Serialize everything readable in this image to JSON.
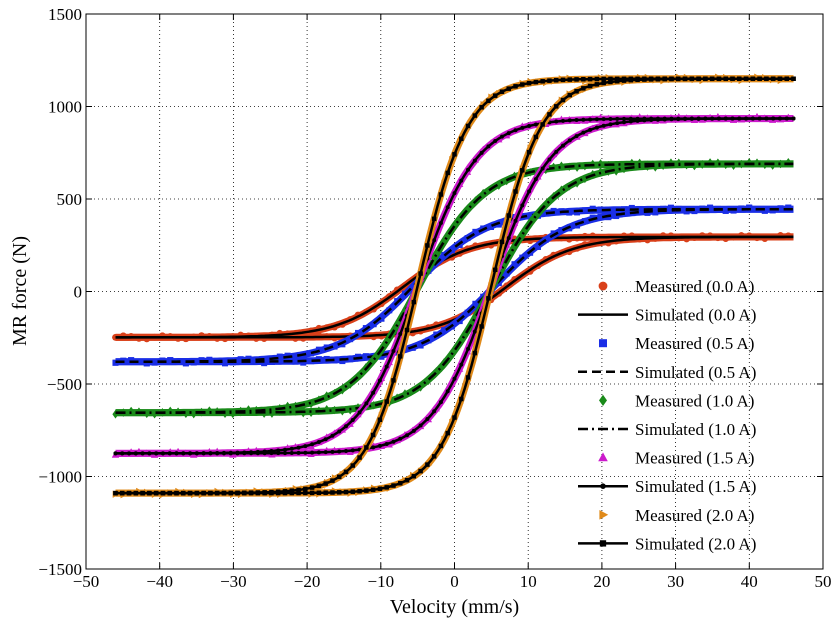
{
  "chart_data": {
    "type": "scatter",
    "title": "",
    "xlabel": "Velocity (mm/s)",
    "ylabel": "MR force (N)",
    "xlim": [
      -50,
      50
    ],
    "ylim": [
      -1500,
      1500
    ],
    "xticks": [
      -50,
      -40,
      -30,
      -20,
      -10,
      0,
      10,
      20,
      30,
      40,
      50
    ],
    "yticks": [
      -1500,
      -1000,
      -500,
      0,
      500,
      1000,
      1500
    ],
    "xtick_labels": [
      "−50",
      "−40",
      "−30",
      "−20",
      "−10",
      "0",
      "10",
      "20",
      "30",
      "40",
      "50"
    ],
    "ytick_labels": [
      "−1500",
      "−1000",
      "−500",
      "0",
      "500",
      "1000",
      "1500"
    ],
    "grid": true,
    "legend_position": "bottom-right",
    "series": [
      {
        "label": "Measured (0.0 A)",
        "kind": "measured",
        "marker": "circle",
        "color": "#d9401a",
        "params": {
          "fmax": 295,
          "fmin": 248,
          "v0": 7,
          "k": 0.11
        }
      },
      {
        "label": "Simulated (0.0 A)",
        "kind": "simulated",
        "line": "solid",
        "marker": "none",
        "color": "#000000",
        "params": {
          "fmax": 295,
          "fmin": 248,
          "v0": 7,
          "k": 0.11
        }
      },
      {
        "label": "Measured (0.5 A)",
        "kind": "measured",
        "marker": "square",
        "color": "#1a2ee6",
        "params": {
          "fmax": 445,
          "fmin": 380,
          "v0": 5.5,
          "k": 0.1
        }
      },
      {
        "label": "Simulated (0.5 A)",
        "kind": "simulated",
        "line": "dashed",
        "marker": "none",
        "color": "#000000",
        "params": {
          "fmax": 445,
          "fmin": 380,
          "v0": 5.5,
          "k": 0.1
        }
      },
      {
        "label": "Measured (1.0 A)",
        "kind": "measured",
        "marker": "diamond",
        "color": "#1a8a1a",
        "params": {
          "fmax": 690,
          "fmin": 655,
          "v0": 5,
          "k": 0.11
        }
      },
      {
        "label": "Simulated (1.0 A)",
        "kind": "simulated",
        "line": "dashdot",
        "marker": "none",
        "color": "#000000",
        "params": {
          "fmax": 690,
          "fmin": 655,
          "v0": 5,
          "k": 0.11
        }
      },
      {
        "label": "Measured (1.5 A)",
        "kind": "measured",
        "marker": "triangle-up",
        "color": "#cc1acc",
        "params": {
          "fmax": 935,
          "fmin": 875,
          "v0": 5,
          "k": 0.125
        }
      },
      {
        "label": "Simulated (1.5 A)",
        "kind": "simulated",
        "line": "solid",
        "marker": "dot",
        "color": "#000000",
        "params": {
          "fmax": 935,
          "fmin": 875,
          "v0": 5,
          "k": 0.125
        }
      },
      {
        "label": "Measured (2.0 A)",
        "kind": "measured",
        "marker": "triangle-right",
        "color": "#e08a1a",
        "params": {
          "fmax": 1150,
          "fmin": 1090,
          "v0": 5,
          "k": 0.15
        }
      },
      {
        "label": "Simulated (2.0 A)",
        "kind": "simulated",
        "line": "solid",
        "marker": "square-small",
        "color": "#000000",
        "params": {
          "fmax": 1150,
          "fmin": 1090,
          "v0": 5,
          "k": 0.15
        }
      }
    ]
  }
}
